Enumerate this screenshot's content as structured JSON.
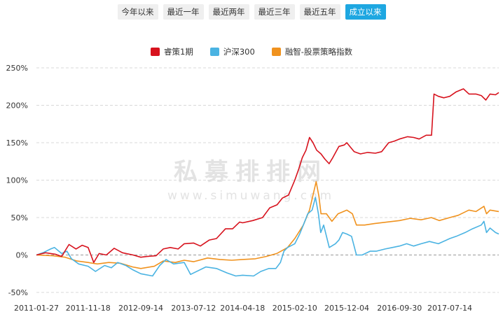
{
  "tabs": [
    {
      "label": "今年以来",
      "active": false
    },
    {
      "label": "最近一年",
      "active": false
    },
    {
      "label": "最近两年",
      "active": false
    },
    {
      "label": "最近三年",
      "active": false
    },
    {
      "label": "最近五年",
      "active": false
    },
    {
      "label": "成立以来",
      "active": true
    }
  ],
  "watermark": {
    "main": "私募排排网",
    "url": "www.simuwang.com"
  },
  "chart_data": {
    "type": "line",
    "title": "",
    "xlabel": "",
    "ylabel": "",
    "ylim": [
      -50,
      250
    ],
    "yticks": [
      -50,
      0,
      50,
      100,
      150,
      200,
      250
    ],
    "ytick_labels": [
      "-50%",
      "0%",
      "50%",
      "100%",
      "150%",
      "200%",
      "250%"
    ],
    "xticks": [
      "2011-01-27",
      "2011-11-18",
      "2012-09-14",
      "2013-07-12",
      "2014-04-18",
      "2015-02-10",
      "2015-12-04",
      "2016-09-30",
      "2017-07-14"
    ],
    "xlim": [
      "2011-01-27",
      "2018-04-20"
    ],
    "grid": "horizontal-dashed",
    "legend": "top-center",
    "series": [
      {
        "name": "睿策1期",
        "color": "#d7121d",
        "points": [
          [
            "2011-01-27",
            0
          ],
          [
            "2011-03-20",
            3
          ],
          [
            "2011-05-15",
            1
          ],
          [
            "2011-06-20",
            -2
          ],
          [
            "2011-08-01",
            14
          ],
          [
            "2011-09-10",
            8
          ],
          [
            "2011-10-15",
            13
          ],
          [
            "2011-11-18",
            10
          ],
          [
            "2011-12-20",
            -10
          ],
          [
            "2012-01-20",
            2
          ],
          [
            "2012-03-01",
            0
          ],
          [
            "2012-04-15",
            9
          ],
          [
            "2012-06-01",
            3
          ],
          [
            "2012-08-01",
            0
          ],
          [
            "2012-09-14",
            -3
          ],
          [
            "2012-10-20",
            -2
          ],
          [
            "2012-12-10",
            -1
          ],
          [
            "2013-01-20",
            8
          ],
          [
            "2013-03-01",
            10
          ],
          [
            "2013-04-15",
            8
          ],
          [
            "2013-05-20",
            15
          ],
          [
            "2013-07-12",
            16
          ],
          [
            "2013-08-20",
            12
          ],
          [
            "2013-10-10",
            20
          ],
          [
            "2013-11-20",
            22
          ],
          [
            "2014-01-10",
            35
          ],
          [
            "2014-02-20",
            35
          ],
          [
            "2014-04-01",
            44
          ],
          [
            "2014-04-18",
            43
          ],
          [
            "2014-06-15",
            46
          ],
          [
            "2014-08-10",
            50
          ],
          [
            "2014-09-20",
            63
          ],
          [
            "2014-11-01",
            67
          ],
          [
            "2014-12-01",
            76
          ],
          [
            "2015-01-05",
            80
          ],
          [
            "2015-02-10",
            100
          ],
          [
            "2015-03-05",
            115
          ],
          [
            "2015-03-25",
            130
          ],
          [
            "2015-04-15",
            140
          ],
          [
            "2015-05-05",
            157
          ],
          [
            "2015-05-25",
            150
          ],
          [
            "2015-06-15",
            140
          ],
          [
            "2015-07-10",
            135
          ],
          [
            "2015-08-01",
            128
          ],
          [
            "2015-08-25",
            122
          ],
          [
            "2015-09-15",
            130
          ],
          [
            "2015-10-20",
            145
          ],
          [
            "2015-11-20",
            147
          ],
          [
            "2015-12-04",
            150
          ],
          [
            "2016-01-15",
            138
          ],
          [
            "2016-02-20",
            135
          ],
          [
            "2016-04-01",
            137
          ],
          [
            "2016-05-15",
            136
          ],
          [
            "2016-06-20",
            138
          ],
          [
            "2016-07-30",
            150
          ],
          [
            "2016-08-30",
            152
          ],
          [
            "2016-09-30",
            155
          ],
          [
            "2016-11-15",
            158
          ],
          [
            "2016-12-20",
            157
          ],
          [
            "2017-01-20",
            155
          ],
          [
            "2017-03-01",
            160
          ],
          [
            "2017-04-01",
            160
          ],
          [
            "2017-04-15",
            215
          ],
          [
            "2017-05-10",
            212
          ],
          [
            "2017-06-10",
            210
          ],
          [
            "2017-07-14",
            212
          ],
          [
            "2017-08-20",
            218
          ],
          [
            "2017-09-30",
            222
          ],
          [
            "2017-11-01",
            215
          ],
          [
            "2017-12-10",
            215
          ],
          [
            "2018-01-10",
            213
          ],
          [
            "2018-02-05",
            207
          ],
          [
            "2018-03-01",
            215
          ],
          [
            "2018-04-01",
            214
          ],
          [
            "2018-04-20",
            217
          ]
        ]
      },
      {
        "name": "沪深300",
        "color": "#4ab3e2",
        "points": [
          [
            "2011-01-27",
            0
          ],
          [
            "2011-03-05",
            3
          ],
          [
            "2011-04-18",
            8
          ],
          [
            "2011-05-10",
            10
          ],
          [
            "2011-06-20",
            2
          ],
          [
            "2011-07-20",
            5
          ],
          [
            "2011-08-15",
            -5
          ],
          [
            "2011-09-25",
            -12
          ],
          [
            "2011-11-18",
            -15
          ],
          [
            "2011-12-30",
            -22
          ],
          [
            "2012-02-20",
            -14
          ],
          [
            "2012-03-30",
            -17
          ],
          [
            "2012-05-05",
            -10
          ],
          [
            "2012-06-20",
            -14
          ],
          [
            "2012-08-01",
            -20
          ],
          [
            "2012-09-14",
            -25
          ],
          [
            "2012-11-20",
            -28
          ],
          [
            "2012-12-31",
            -14
          ],
          [
            "2013-02-05",
            -6
          ],
          [
            "2013-03-20",
            -12
          ],
          [
            "2013-05-20",
            -10
          ],
          [
            "2013-06-25",
            -26
          ],
          [
            "2013-07-12",
            -24
          ],
          [
            "2013-09-20",
            -16
          ],
          [
            "2013-11-20",
            -18
          ],
          [
            "2014-01-20",
            -24
          ],
          [
            "2014-03-10",
            -28
          ],
          [
            "2014-04-18",
            -27
          ],
          [
            "2014-06-20",
            -28
          ],
          [
            "2014-07-31",
            -22
          ],
          [
            "2014-09-15",
            -18
          ],
          [
            "2014-10-25",
            -18
          ],
          [
            "2014-11-20",
            -10
          ],
          [
            "2014-12-10",
            5
          ],
          [
            "2014-12-31",
            10
          ],
          [
            "2015-02-10",
            15
          ],
          [
            "2015-03-10",
            28
          ],
          [
            "2015-03-31",
            40
          ],
          [
            "2015-04-25",
            55
          ],
          [
            "2015-05-20",
            60
          ],
          [
            "2015-06-08",
            77
          ],
          [
            "2015-06-25",
            55
          ],
          [
            "2015-07-08",
            30
          ],
          [
            "2015-07-25",
            40
          ],
          [
            "2015-08-26",
            10
          ],
          [
            "2015-09-30",
            15
          ],
          [
            "2015-10-20",
            20
          ],
          [
            "2015-11-10",
            30
          ],
          [
            "2015-12-04",
            28
          ],
          [
            "2015-12-31",
            25
          ],
          [
            "2016-01-28",
            0
          ],
          [
            "2016-03-01",
            0
          ],
          [
            "2016-04-15",
            5
          ],
          [
            "2016-05-20",
            5
          ],
          [
            "2016-07-10",
            8
          ],
          [
            "2016-08-20",
            10
          ],
          [
            "2016-09-30",
            12
          ],
          [
            "2016-11-10",
            15
          ],
          [
            "2016-12-20",
            12
          ],
          [
            "2017-02-01",
            15
          ],
          [
            "2017-03-20",
            18
          ],
          [
            "2017-05-10",
            15
          ],
          [
            "2017-07-14",
            22
          ],
          [
            "2017-08-20",
            25
          ],
          [
            "2017-10-10",
            30
          ],
          [
            "2017-11-20",
            35
          ],
          [
            "2018-01-10",
            40
          ],
          [
            "2018-01-25",
            45
          ],
          [
            "2018-02-09",
            30
          ],
          [
            "2018-03-01",
            36
          ],
          [
            "2018-04-01",
            30
          ],
          [
            "2018-04-20",
            28
          ]
        ]
      },
      {
        "name": "融智-股票策略指数",
        "color": "#f0921e",
        "points": [
          [
            "2011-01-27",
            0
          ],
          [
            "2011-05-01",
            -1
          ],
          [
            "2011-07-10",
            -3
          ],
          [
            "2011-09-15",
            -8
          ],
          [
            "2011-11-18",
            -10
          ],
          [
            "2012-01-10",
            -12
          ],
          [
            "2012-03-15",
            -10
          ],
          [
            "2012-05-20",
            -11
          ],
          [
            "2012-07-30",
            -16
          ],
          [
            "2012-09-14",
            -18
          ],
          [
            "2012-11-30",
            -15
          ],
          [
            "2013-01-20",
            -8
          ],
          [
            "2013-03-30",
            -10
          ],
          [
            "2013-05-20",
            -7
          ],
          [
            "2013-07-12",
            -9
          ],
          [
            "2013-09-30",
            -4
          ],
          [
            "2013-12-10",
            -6
          ],
          [
            "2014-02-15",
            -7
          ],
          [
            "2014-04-18",
            -6
          ],
          [
            "2014-06-30",
            -5
          ],
          [
            "2014-08-30",
            -2
          ],
          [
            "2014-10-30",
            2
          ],
          [
            "2014-12-31",
            10
          ],
          [
            "2015-02-10",
            22
          ],
          [
            "2015-03-31",
            40
          ],
          [
            "2015-05-05",
            60
          ],
          [
            "2015-06-12",
            98
          ],
          [
            "2015-06-28",
            78
          ],
          [
            "2015-07-10",
            55
          ],
          [
            "2015-08-10",
            55
          ],
          [
            "2015-09-10",
            45
          ],
          [
            "2015-10-15",
            55
          ],
          [
            "2015-11-15",
            58
          ],
          [
            "2015-12-04",
            60
          ],
          [
            "2016-01-05",
            55
          ],
          [
            "2016-01-28",
            40
          ],
          [
            "2016-03-15",
            40
          ],
          [
            "2016-05-10",
            42
          ],
          [
            "2016-07-20",
            44
          ],
          [
            "2016-09-30",
            46
          ],
          [
            "2016-11-30",
            49
          ],
          [
            "2017-01-31",
            47
          ],
          [
            "2017-03-31",
            50
          ],
          [
            "2017-05-15",
            46
          ],
          [
            "2017-07-14",
            50
          ],
          [
            "2017-08-31",
            53
          ],
          [
            "2017-10-31",
            60
          ],
          [
            "2017-12-10",
            58
          ],
          [
            "2018-01-25",
            65
          ],
          [
            "2018-02-09",
            55
          ],
          [
            "2018-03-01",
            60
          ],
          [
            "2018-04-20",
            58
          ]
        ]
      }
    ]
  }
}
